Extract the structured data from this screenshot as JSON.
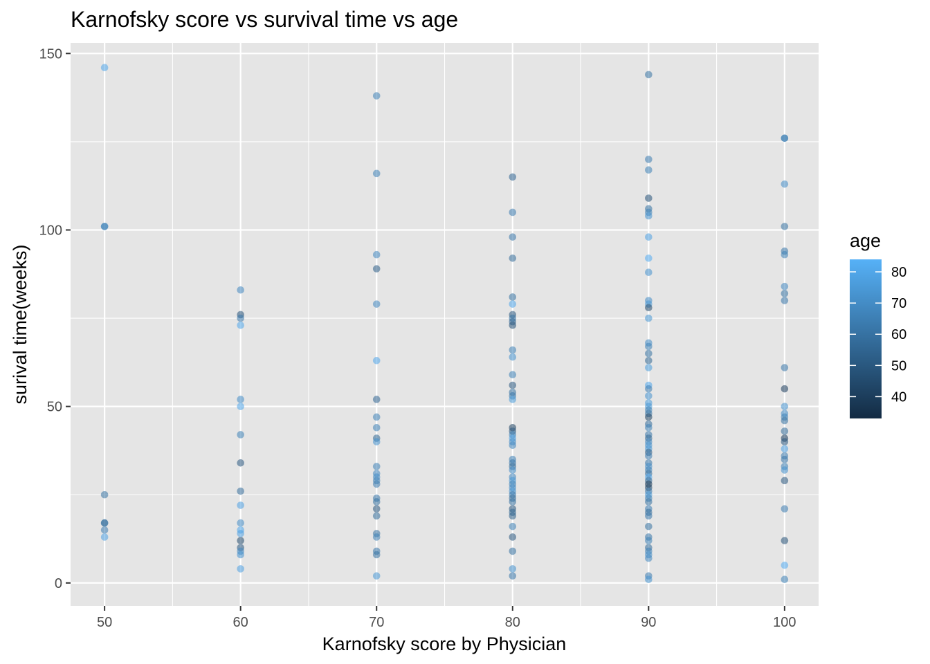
{
  "chart_data": {
    "type": "scatter",
    "title": "Karnofsky score vs survival time vs age",
    "xlabel": "Karnofsky score by Physician",
    "ylabel": "surival time(weeks)",
    "x_ticks": [
      50,
      60,
      70,
      80,
      90,
      100
    ],
    "y_ticks": [
      0,
      50,
      100,
      150
    ],
    "xlim": [
      47.5,
      102.5
    ],
    "ylim": [
      -6.5,
      153
    ],
    "grid": true,
    "legend": {
      "title": "age",
      "position": "right",
      "type": "colorbar",
      "range": [
        33,
        84
      ],
      "ticks": [
        40,
        50,
        60,
        70,
        80
      ],
      "color_low": "#132B43",
      "color_high": "#56B1F7"
    },
    "colors": {
      "panel_background": "#e5e5e5",
      "grid_line": "#ffffff",
      "tick_text": "#4d4d4d"
    },
    "points": [
      {
        "x": 50,
        "y": 146,
        "age": 80
      },
      {
        "x": 50,
        "y": 101,
        "age": 68
      },
      {
        "x": 50,
        "y": 101,
        "age": 66
      },
      {
        "x": 50,
        "y": 25,
        "age": 60
      },
      {
        "x": 50,
        "y": 17,
        "age": 62
      },
      {
        "x": 50,
        "y": 17,
        "age": 58
      },
      {
        "x": 50,
        "y": 15,
        "age": 64
      },
      {
        "x": 50,
        "y": 13,
        "age": 78
      },
      {
        "x": 60,
        "y": 83,
        "age": 68
      },
      {
        "x": 60,
        "y": 76,
        "age": 48
      },
      {
        "x": 60,
        "y": 75,
        "age": 62
      },
      {
        "x": 60,
        "y": 73,
        "age": 80
      },
      {
        "x": 60,
        "y": 52,
        "age": 70
      },
      {
        "x": 60,
        "y": 50,
        "age": 80
      },
      {
        "x": 60,
        "y": 42,
        "age": 66
      },
      {
        "x": 60,
        "y": 34,
        "age": 50
      },
      {
        "x": 60,
        "y": 26,
        "age": 58
      },
      {
        "x": 60,
        "y": 22,
        "age": 78
      },
      {
        "x": 60,
        "y": 17,
        "age": 70
      },
      {
        "x": 60,
        "y": 15,
        "age": 80
      },
      {
        "x": 60,
        "y": 14,
        "age": 78
      },
      {
        "x": 60,
        "y": 12,
        "age": 45
      },
      {
        "x": 60,
        "y": 10,
        "age": 50
      },
      {
        "x": 60,
        "y": 9,
        "age": 68
      },
      {
        "x": 60,
        "y": 8,
        "age": 72
      },
      {
        "x": 60,
        "y": 4,
        "age": 78
      },
      {
        "x": 70,
        "y": 138,
        "age": 66
      },
      {
        "x": 70,
        "y": 116,
        "age": 66
      },
      {
        "x": 70,
        "y": 93,
        "age": 68
      },
      {
        "x": 70,
        "y": 89,
        "age": 52
      },
      {
        "x": 70,
        "y": 79,
        "age": 68
      },
      {
        "x": 70,
        "y": 63,
        "age": 80
      },
      {
        "x": 70,
        "y": 52,
        "age": 55
      },
      {
        "x": 70,
        "y": 47,
        "age": 66
      },
      {
        "x": 70,
        "y": 44,
        "age": 66
      },
      {
        "x": 70,
        "y": 41,
        "age": 56
      },
      {
        "x": 70,
        "y": 40,
        "age": 72
      },
      {
        "x": 70,
        "y": 33,
        "age": 66
      },
      {
        "x": 70,
        "y": 31,
        "age": 68
      },
      {
        "x": 70,
        "y": 30,
        "age": 70
      },
      {
        "x": 70,
        "y": 29,
        "age": 66
      },
      {
        "x": 70,
        "y": 28,
        "age": 64
      },
      {
        "x": 70,
        "y": 24,
        "age": 62
      },
      {
        "x": 70,
        "y": 23,
        "age": 60
      },
      {
        "x": 70,
        "y": 21,
        "age": 50
      },
      {
        "x": 70,
        "y": 19,
        "age": 58
      },
      {
        "x": 70,
        "y": 14,
        "age": 60
      },
      {
        "x": 70,
        "y": 13,
        "age": 66
      },
      {
        "x": 70,
        "y": 9,
        "age": 62
      },
      {
        "x": 70,
        "y": 8,
        "age": 60
      },
      {
        "x": 70,
        "y": 2,
        "age": 74
      },
      {
        "x": 80,
        "y": 115,
        "age": 55
      },
      {
        "x": 80,
        "y": 105,
        "age": 64
      },
      {
        "x": 80,
        "y": 98,
        "age": 62
      },
      {
        "x": 80,
        "y": 92,
        "age": 58
      },
      {
        "x": 80,
        "y": 81,
        "age": 60
      },
      {
        "x": 80,
        "y": 79,
        "age": 80
      },
      {
        "x": 80,
        "y": 76,
        "age": 50
      },
      {
        "x": 80,
        "y": 75,
        "age": 60
      },
      {
        "x": 80,
        "y": 74,
        "age": 55
      },
      {
        "x": 80,
        "y": 73,
        "age": 48
      },
      {
        "x": 80,
        "y": 66,
        "age": 66
      },
      {
        "x": 80,
        "y": 64,
        "age": 72
      },
      {
        "x": 80,
        "y": 59,
        "age": 66
      },
      {
        "x": 80,
        "y": 56,
        "age": 50
      },
      {
        "x": 80,
        "y": 54,
        "age": 60
      },
      {
        "x": 80,
        "y": 53,
        "age": 62
      },
      {
        "x": 80,
        "y": 52,
        "age": 76
      },
      {
        "x": 80,
        "y": 44,
        "age": 42
      },
      {
        "x": 80,
        "y": 43,
        "age": 50
      },
      {
        "x": 80,
        "y": 42,
        "age": 66
      },
      {
        "x": 80,
        "y": 41,
        "age": 78
      },
      {
        "x": 80,
        "y": 40,
        "age": 70
      },
      {
        "x": 80,
        "y": 39,
        "age": 68
      },
      {
        "x": 80,
        "y": 35,
        "age": 66
      },
      {
        "x": 80,
        "y": 34,
        "age": 62
      },
      {
        "x": 80,
        "y": 33,
        "age": 58
      },
      {
        "x": 80,
        "y": 32,
        "age": 70
      },
      {
        "x": 80,
        "y": 30,
        "age": 68
      },
      {
        "x": 80,
        "y": 29,
        "age": 74
      },
      {
        "x": 80,
        "y": 28,
        "age": 66
      },
      {
        "x": 80,
        "y": 27,
        "age": 70
      },
      {
        "x": 80,
        "y": 26,
        "age": 72
      },
      {
        "x": 80,
        "y": 25,
        "age": 62
      },
      {
        "x": 80,
        "y": 24,
        "age": 58
      },
      {
        "x": 80,
        "y": 23,
        "age": 60
      },
      {
        "x": 80,
        "y": 21,
        "age": 50
      },
      {
        "x": 80,
        "y": 20,
        "age": 56
      },
      {
        "x": 80,
        "y": 19,
        "age": 54
      },
      {
        "x": 80,
        "y": 16,
        "age": 66
      },
      {
        "x": 80,
        "y": 13,
        "age": 50
      },
      {
        "x": 80,
        "y": 9,
        "age": 60
      },
      {
        "x": 80,
        "y": 4,
        "age": 72
      },
      {
        "x": 80,
        "y": 2,
        "age": 62
      },
      {
        "x": 90,
        "y": 144,
        "age": 60
      },
      {
        "x": 90,
        "y": 120,
        "age": 64
      },
      {
        "x": 90,
        "y": 117,
        "age": 66
      },
      {
        "x": 90,
        "y": 109,
        "age": 48
      },
      {
        "x": 90,
        "y": 106,
        "age": 60
      },
      {
        "x": 90,
        "y": 105,
        "age": 66
      },
      {
        "x": 90,
        "y": 104,
        "age": 72
      },
      {
        "x": 90,
        "y": 98,
        "age": 78
      },
      {
        "x": 90,
        "y": 92,
        "age": 82
      },
      {
        "x": 90,
        "y": 88,
        "age": 72
      },
      {
        "x": 90,
        "y": 80,
        "age": 70
      },
      {
        "x": 90,
        "y": 79,
        "age": 74
      },
      {
        "x": 90,
        "y": 78,
        "age": 45
      },
      {
        "x": 90,
        "y": 75,
        "age": 74
      },
      {
        "x": 90,
        "y": 68,
        "age": 70
      },
      {
        "x": 90,
        "y": 67,
        "age": 66
      },
      {
        "x": 90,
        "y": 65,
        "age": 60
      },
      {
        "x": 90,
        "y": 63,
        "age": 56
      },
      {
        "x": 90,
        "y": 61,
        "age": 76
      },
      {
        "x": 90,
        "y": 56,
        "age": 80
      },
      {
        "x": 90,
        "y": 55,
        "age": 64
      },
      {
        "x": 90,
        "y": 53,
        "age": 72
      },
      {
        "x": 90,
        "y": 51,
        "age": 76
      },
      {
        "x": 90,
        "y": 50,
        "age": 74
      },
      {
        "x": 90,
        "y": 49,
        "age": 66
      },
      {
        "x": 90,
        "y": 48,
        "age": 60
      },
      {
        "x": 90,
        "y": 47,
        "age": 42
      },
      {
        "x": 90,
        "y": 45,
        "age": 58
      },
      {
        "x": 90,
        "y": 44,
        "age": 66
      },
      {
        "x": 90,
        "y": 42,
        "age": 62
      },
      {
        "x": 90,
        "y": 41,
        "age": 56
      },
      {
        "x": 90,
        "y": 40,
        "age": 68
      },
      {
        "x": 90,
        "y": 39,
        "age": 72
      },
      {
        "x": 90,
        "y": 38,
        "age": 74
      },
      {
        "x": 90,
        "y": 37,
        "age": 52
      },
      {
        "x": 90,
        "y": 36,
        "age": 64
      },
      {
        "x": 90,
        "y": 34,
        "age": 62
      },
      {
        "x": 90,
        "y": 33,
        "age": 70
      },
      {
        "x": 90,
        "y": 32,
        "age": 66
      },
      {
        "x": 90,
        "y": 31,
        "age": 58
      },
      {
        "x": 90,
        "y": 30,
        "age": 80
      },
      {
        "x": 90,
        "y": 29,
        "age": 56
      },
      {
        "x": 90,
        "y": 28,
        "age": 38
      },
      {
        "x": 90,
        "y": 27,
        "age": 44
      },
      {
        "x": 90,
        "y": 26,
        "age": 62
      },
      {
        "x": 90,
        "y": 25,
        "age": 74
      },
      {
        "x": 90,
        "y": 24,
        "age": 66
      },
      {
        "x": 90,
        "y": 23,
        "age": 60
      },
      {
        "x": 90,
        "y": 21,
        "age": 64
      },
      {
        "x": 90,
        "y": 20,
        "age": 58
      },
      {
        "x": 90,
        "y": 19,
        "age": 62
      },
      {
        "x": 90,
        "y": 16,
        "age": 60
      },
      {
        "x": 90,
        "y": 13,
        "age": 62
      },
      {
        "x": 90,
        "y": 12,
        "age": 66
      },
      {
        "x": 90,
        "y": 10,
        "age": 58
      },
      {
        "x": 90,
        "y": 9,
        "age": 66
      },
      {
        "x": 90,
        "y": 8,
        "age": 70
      },
      {
        "x": 90,
        "y": 7,
        "age": 68
      },
      {
        "x": 90,
        "y": 2,
        "age": 64
      },
      {
        "x": 90,
        "y": 1,
        "age": 72
      },
      {
        "x": 100,
        "y": 126,
        "age": 64
      },
      {
        "x": 100,
        "y": 126,
        "age": 66
      },
      {
        "x": 100,
        "y": 113,
        "age": 70
      },
      {
        "x": 100,
        "y": 101,
        "age": 60
      },
      {
        "x": 100,
        "y": 94,
        "age": 62
      },
      {
        "x": 100,
        "y": 93,
        "age": 66
      },
      {
        "x": 100,
        "y": 84,
        "age": 68
      },
      {
        "x": 100,
        "y": 82,
        "age": 60
      },
      {
        "x": 100,
        "y": 80,
        "age": 62
      },
      {
        "x": 100,
        "y": 61,
        "age": 62
      },
      {
        "x": 100,
        "y": 55,
        "age": 40
      },
      {
        "x": 100,
        "y": 50,
        "age": 72
      },
      {
        "x": 100,
        "y": 48,
        "age": 70
      },
      {
        "x": 100,
        "y": 47,
        "age": 66
      },
      {
        "x": 100,
        "y": 46,
        "age": 60
      },
      {
        "x": 100,
        "y": 43,
        "age": 58
      },
      {
        "x": 100,
        "y": 41,
        "age": 40
      },
      {
        "x": 100,
        "y": 40,
        "age": 50
      },
      {
        "x": 100,
        "y": 38,
        "age": 78
      },
      {
        "x": 100,
        "y": 36,
        "age": 64
      },
      {
        "x": 100,
        "y": 35,
        "age": 62
      },
      {
        "x": 100,
        "y": 33,
        "age": 66
      },
      {
        "x": 100,
        "y": 32,
        "age": 72
      },
      {
        "x": 100,
        "y": 29,
        "age": 50
      },
      {
        "x": 100,
        "y": 21,
        "age": 64
      },
      {
        "x": 100,
        "y": 12,
        "age": 48
      },
      {
        "x": 100,
        "y": 5,
        "age": 82
      },
      {
        "x": 100,
        "y": 1,
        "age": 66
      }
    ]
  }
}
